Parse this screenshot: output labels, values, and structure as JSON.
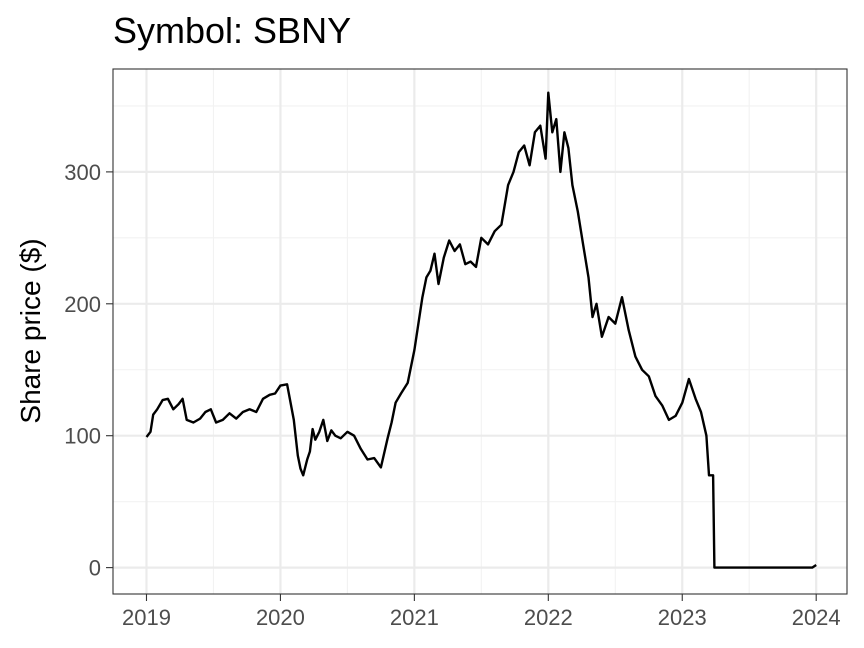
{
  "chart_data": {
    "type": "line",
    "title": "Symbol: SBNY",
    "xlabel": "",
    "ylabel": "Share price ($)",
    "xlim": [
      2018.75,
      2024.23
    ],
    "ylim": [
      -20,
      378
    ],
    "x_ticks": [
      2019,
      2020,
      2021,
      2022,
      2023,
      2024
    ],
    "x_tick_labels": [
      "2019",
      "2020",
      "2021",
      "2022",
      "2023",
      "2024"
    ],
    "y_ticks": [
      0,
      100,
      200,
      300
    ],
    "y_tick_labels": [
      "0",
      "100",
      "200",
      "300"
    ],
    "grid": true,
    "legend": "none",
    "series": [
      {
        "color": "#000000",
        "x": [
          2019.0,
          2019.03,
          2019.05,
          2019.08,
          2019.12,
          2019.16,
          2019.2,
          2019.24,
          2019.27,
          2019.3,
          2019.35,
          2019.4,
          2019.44,
          2019.48,
          2019.52,
          2019.57,
          2019.62,
          2019.67,
          2019.72,
          2019.77,
          2019.82,
          2019.87,
          2019.92,
          2019.96,
          2020.0,
          2020.05,
          2020.1,
          2020.13,
          2020.15,
          2020.17,
          2020.2,
          2020.22,
          2020.24,
          2020.26,
          2020.29,
          2020.32,
          2020.35,
          2020.38,
          2020.41,
          2020.45,
          2020.5,
          2020.55,
          2020.6,
          2020.65,
          2020.7,
          2020.75,
          2020.8,
          2020.83,
          2020.86,
          2020.9,
          2020.95,
          2021.0,
          2021.03,
          2021.06,
          2021.09,
          2021.12,
          2021.15,
          2021.18,
          2021.22,
          2021.26,
          2021.3,
          2021.34,
          2021.38,
          2021.42,
          2021.46,
          2021.5,
          2021.55,
          2021.6,
          2021.65,
          2021.7,
          2021.74,
          2021.78,
          2021.82,
          2021.86,
          2021.9,
          2021.94,
          2021.98,
          2022.0,
          2022.03,
          2022.06,
          2022.09,
          2022.12,
          2022.15,
          2022.18,
          2022.22,
          2022.26,
          2022.3,
          2022.33,
          2022.36,
          2022.4,
          2022.45,
          2022.5,
          2022.55,
          2022.6,
          2022.65,
          2022.7,
          2022.75,
          2022.8,
          2022.85,
          2022.9,
          2022.95,
          2023.0,
          2023.05,
          2023.1,
          2023.14,
          2023.18,
          2023.2,
          2023.23,
          2023.24,
          2023.3,
          2023.5,
          2023.75,
          2023.97,
          2024.0
        ],
        "y": [
          99,
          103,
          116,
          120,
          127,
          128,
          120,
          124,
          128,
          112,
          110,
          113,
          118,
          120,
          110,
          112,
          117,
          113,
          118,
          120,
          118,
          128,
          131,
          132,
          138,
          139,
          112,
          85,
          75,
          70,
          82,
          88,
          105,
          97,
          103,
          112,
          96,
          104,
          100,
          98,
          103,
          100,
          90,
          82,
          83,
          76,
          98,
          110,
          125,
          132,
          140,
          165,
          185,
          205,
          220,
          225,
          238,
          215,
          235,
          248,
          240,
          245,
          230,
          232,
          228,
          250,
          245,
          255,
          260,
          290,
          300,
          315,
          320,
          305,
          330,
          335,
          310,
          360,
          330,
          340,
          300,
          330,
          318,
          290,
          270,
          245,
          220,
          190,
          200,
          175,
          190,
          185,
          205,
          180,
          160,
          150,
          145,
          130,
          123,
          112,
          115,
          125,
          143,
          128,
          118,
          100,
          70,
          70,
          0,
          0,
          0,
          0,
          0,
          2
        ]
      }
    ]
  }
}
